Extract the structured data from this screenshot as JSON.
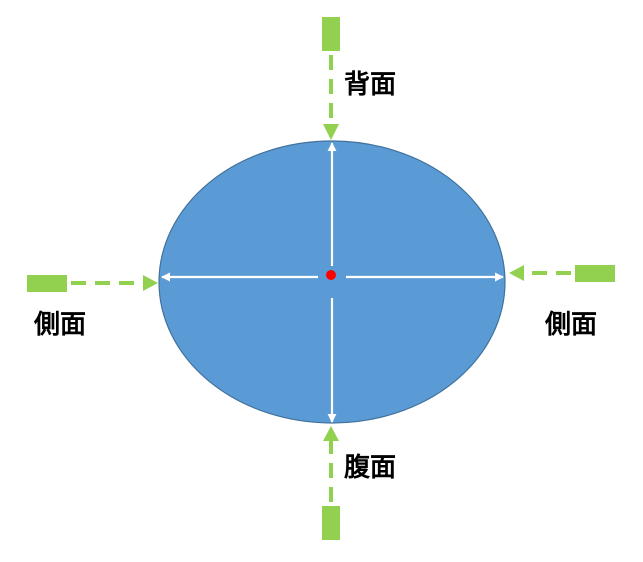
{
  "labels": {
    "top": "背面",
    "bottom": "腹面",
    "left": "側面",
    "right": "側面"
  },
  "colors": {
    "ellipse_fill": "#5b9bd5",
    "ellipse_stroke": "#41719c",
    "inner_arrows": "#ffffff",
    "center_dot": "#ff0000",
    "view_arrows": "#92d050",
    "text": "#000000"
  }
}
